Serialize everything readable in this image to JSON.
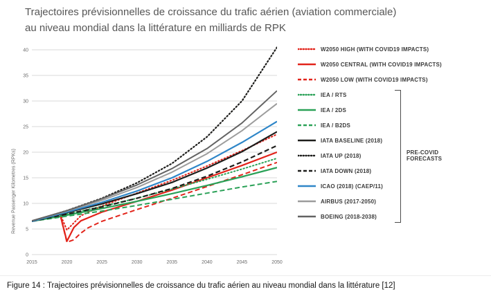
{
  "title": "Trajectoires prévisionnelles de croissance du trafic aérien (aviation commerciale) au niveau mondial dans la littérature en milliards de RPK",
  "caption": "Figure 14 : Trajectoires prévisionnelles de croissance du trafic aérien au niveau mondial dans la littérature [12]",
  "pre_covid_label": "PRE-COVID\nFORECASTS",
  "chart_data": {
    "type": "line",
    "title": "Trajectoires prévisionnelles de croissance du trafic aérien (aviation commerciale) au niveau mondial dans la littérature en milliards de RPK",
    "xlabel": "",
    "ylabel": "Revenue Passenger Kilometres (RPKs)",
    "xlim": [
      2015,
      2050
    ],
    "ylim": [
      0,
      40
    ],
    "xticks": [
      2015,
      2020,
      2025,
      2030,
      2035,
      2040,
      2045,
      2050
    ],
    "yticks": [
      0,
      5,
      10,
      15,
      20,
      25,
      30,
      35,
      40
    ],
    "grid": true,
    "legend_position": "right",
    "colors": {
      "covid_red": "#e2231a",
      "iea_green": "#2aa157",
      "iata_black": "#1d1d1b",
      "icao_blue": "#2e86c8",
      "airbus_gray": "#9c9c9c",
      "boeing_gray": "#636363"
    },
    "series": [
      {
        "name": "W2050 HIGH (WITH COVID19 IMPACTS)",
        "color": "#e2231a",
        "style": "dotted",
        "width": 2,
        "points": [
          [
            2015,
            6.5
          ],
          [
            2017,
            7.1
          ],
          [
            2019,
            8.0
          ],
          [
            2020,
            4.8
          ],
          [
            2021,
            6.2
          ],
          [
            2022,
            7.6
          ],
          [
            2025,
            9.5
          ],
          [
            2030,
            12.0
          ],
          [
            2035,
            14.5
          ],
          [
            2040,
            17.3
          ],
          [
            2045,
            20.3
          ],
          [
            2050,
            23.5
          ]
        ]
      },
      {
        "name": "W2050 CENTRAL (WITH COVID19 IMPACTS)",
        "color": "#e2231a",
        "style": "solid",
        "width": 2.2,
        "points": [
          [
            2015,
            6.5
          ],
          [
            2017,
            7.1
          ],
          [
            2019,
            8.0
          ],
          [
            2020,
            2.6
          ],
          [
            2021,
            5.3
          ],
          [
            2022,
            6.6
          ],
          [
            2025,
            8.3
          ],
          [
            2030,
            10.4
          ],
          [
            2035,
            12.6
          ],
          [
            2040,
            15.0
          ],
          [
            2045,
            17.4
          ],
          [
            2050,
            20.0
          ]
        ]
      },
      {
        "name": "W2050 LOW (WITH COVID19 IMPACTS)",
        "color": "#e2231a",
        "style": "dashed",
        "width": 2,
        "points": [
          [
            2015,
            6.5
          ],
          [
            2017,
            7.1
          ],
          [
            2019,
            8.0
          ],
          [
            2020,
            2.4
          ],
          [
            2021,
            2.9
          ],
          [
            2022,
            4.2
          ],
          [
            2023,
            5.2
          ],
          [
            2025,
            6.5
          ],
          [
            2030,
            8.8
          ],
          [
            2035,
            11.0
          ],
          [
            2040,
            13.3
          ],
          [
            2045,
            15.6
          ],
          [
            2050,
            18.0
          ]
        ]
      },
      {
        "name": "IEA / RTS",
        "color": "#2aa157",
        "style": "dotted",
        "width": 2,
        "points": [
          [
            2015,
            6.5
          ],
          [
            2020,
            7.9
          ],
          [
            2025,
            9.4
          ],
          [
            2030,
            11.0
          ],
          [
            2035,
            12.8
          ],
          [
            2040,
            14.7
          ],
          [
            2045,
            16.7
          ],
          [
            2050,
            18.8
          ]
        ]
      },
      {
        "name": "IEA / 2DS",
        "color": "#2aa157",
        "style": "solid",
        "width": 2.2,
        "points": [
          [
            2015,
            6.5
          ],
          [
            2020,
            7.7
          ],
          [
            2025,
            9.0
          ],
          [
            2030,
            10.4
          ],
          [
            2035,
            11.9
          ],
          [
            2040,
            13.5
          ],
          [
            2045,
            15.2
          ],
          [
            2050,
            17.0
          ]
        ]
      },
      {
        "name": "IEA / B2DS",
        "color": "#2aa157",
        "style": "dashed",
        "width": 2,
        "points": [
          [
            2015,
            6.5
          ],
          [
            2020,
            7.5
          ],
          [
            2025,
            8.5
          ],
          [
            2030,
            9.6
          ],
          [
            2035,
            10.8
          ],
          [
            2040,
            12.0
          ],
          [
            2045,
            13.2
          ],
          [
            2050,
            14.3
          ]
        ]
      },
      {
        "name": "IATA BASELINE (2018)",
        "color": "#1d1d1b",
        "style": "solid",
        "width": 2.2,
        "points": [
          [
            2015,
            6.5
          ],
          [
            2020,
            8.2
          ],
          [
            2025,
            9.9
          ],
          [
            2030,
            11.9
          ],
          [
            2035,
            14.1
          ],
          [
            2040,
            16.9
          ],
          [
            2045,
            20.1
          ],
          [
            2050,
            24.0
          ]
        ]
      },
      {
        "name": "IATA UP (2018)",
        "color": "#1d1d1b",
        "style": "dotted",
        "width": 2.2,
        "points": [
          [
            2015,
            6.5
          ],
          [
            2020,
            8.6
          ],
          [
            2025,
            11.0
          ],
          [
            2030,
            14.0
          ],
          [
            2035,
            17.8
          ],
          [
            2040,
            23.0
          ],
          [
            2045,
            30.0
          ],
          [
            2050,
            40.5
          ]
        ]
      },
      {
        "name": "IATA DOWN (2018)",
        "color": "#1d1d1b",
        "style": "dashed",
        "width": 2.2,
        "points": [
          [
            2015,
            6.5
          ],
          [
            2020,
            7.9
          ],
          [
            2025,
            9.3
          ],
          [
            2030,
            11.0
          ],
          [
            2035,
            12.9
          ],
          [
            2040,
            15.3
          ],
          [
            2045,
            18.1
          ],
          [
            2050,
            21.3
          ]
        ]
      },
      {
        "name": "ICAO (2018) (CAEP/11)",
        "color": "#2e86c8",
        "style": "solid",
        "width": 2.2,
        "points": [
          [
            2015,
            6.5
          ],
          [
            2020,
            8.3
          ],
          [
            2025,
            10.2
          ],
          [
            2030,
            12.4
          ],
          [
            2035,
            15.0
          ],
          [
            2040,
            18.2
          ],
          [
            2045,
            21.9
          ],
          [
            2050,
            26.0
          ]
        ]
      },
      {
        "name": "AIRBUS (2017-2050)",
        "color": "#9c9c9c",
        "style": "solid",
        "width": 2,
        "points": [
          [
            2015,
            6.6
          ],
          [
            2020,
            8.5
          ],
          [
            2025,
            10.6
          ],
          [
            2030,
            13.1
          ],
          [
            2035,
            16.1
          ],
          [
            2040,
            19.7
          ],
          [
            2045,
            24.2
          ],
          [
            2050,
            29.5
          ]
        ]
      },
      {
        "name": "BOEING (2018-2038)",
        "color": "#636363",
        "style": "solid",
        "width": 2,
        "points": [
          [
            2015,
            6.6
          ],
          [
            2020,
            8.6
          ],
          [
            2025,
            10.9
          ],
          [
            2030,
            13.6
          ],
          [
            2035,
            16.8
          ],
          [
            2040,
            20.7
          ],
          [
            2045,
            25.7
          ],
          [
            2050,
            32.0
          ]
        ]
      }
    ],
    "pre_covid_bracket_series": [
      "IEA / RTS",
      "IEA / 2DS",
      "IEA / B2DS",
      "IATA BASELINE (2018)",
      "IATA UP (2018)",
      "IATA DOWN (2018)",
      "ICAO (2018) (CAEP/11)",
      "AIRBUS (2017-2050)",
      "BOEING (2018-2038)"
    ]
  }
}
